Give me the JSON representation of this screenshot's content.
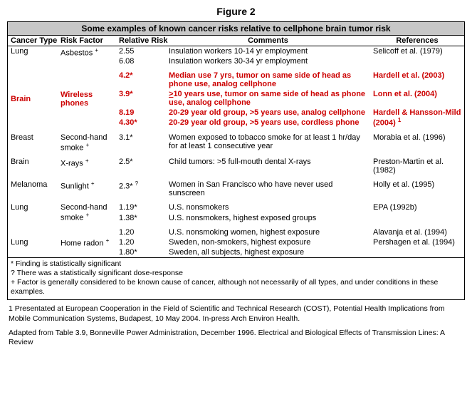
{
  "figure_label": "Figure 2",
  "caption": "Some examples of known cancer risks relative to cellphone brain tumor risk",
  "headers": {
    "cancer_type": "Cancer Type",
    "risk_factor": "Risk Factor",
    "relative_risk": "Relative Risk",
    "comments": "Comments",
    "references": "References"
  },
  "rows": {
    "lung_asbestos": {
      "ct": "Lung",
      "rf": "Asbestos",
      "rf_sup": "+",
      "rr1": "2.55",
      "rr2": "6.08",
      "cm1": "Insulation workers 10-14 yr employment",
      "cm2": "Insulation workers 30-34 yr employment",
      "ref": "Selicoff et al. (1979)"
    },
    "brain_wireless": {
      "ct": "Brain",
      "rf": "Wireless phones",
      "rr1": "4.2*",
      "rr2": "3.9*",
      "rr3": "8.19",
      "rr4": "4.30*",
      "cm1": "Median use 7 yrs, tumor on same side of head as phone use, analog cellphone",
      "cm2a": ">",
      "cm2b": "10 years use, tumor on same side of head as phone use, analog cellphone",
      "cm3": "20-29 year old group, >5 years use, analog cellphone",
      "cm4": "20-29 year old group, >5 years use, cordless phone",
      "ref1": "Hardell et al. (2003)",
      "ref2": "Lonn et al. (2004)",
      "ref3": "Hardell & Hansson-Mild (2004)",
      "ref3_sup": "1"
    },
    "breast_smoke": {
      "ct": "Breast",
      "rf": "Second-hand smoke",
      "rf_sup": "+",
      "rr": "3.1*",
      "cm": "Women exposed to tobacco smoke for at least 1 hr/day for at least 1 consecutive year",
      "ref": "Morabia et al. (1996)"
    },
    "brain_xray": {
      "ct": "Brain",
      "rf": "X-rays",
      "rf_sup": "+",
      "rr": "2.5*",
      "cm": "Child tumors: >5 full-mouth dental X-rays",
      "ref": "Preston-Martin et al. (1982)"
    },
    "melanoma": {
      "ct": "Melanoma",
      "rf": "Sunlight",
      "rf_sup": "+",
      "rr": "2.3*",
      "rr_sup": "?",
      "cm": "Women in San Francisco who have never used sunscreen",
      "ref": "Holly et al. (1995)"
    },
    "lung_smoke": {
      "ct": "Lung",
      "rf": "Second-hand smoke",
      "rf_sup": "+",
      "rr1": "1.19*",
      "rr2": "1.38*",
      "cm1": "U.S. nonsmokers",
      "cm2": "U.S. nonsmokers, highest exposed groups",
      "ref": "EPA (1992b)"
    },
    "lung_radon": {
      "ct": "Lung",
      "rf": "Home radon",
      "rf_sup": "+",
      "rr1": "1.20",
      "rr2": "1.20",
      "rr3": "1.80*",
      "cm1": "U.S. nonsmoking women, highest exposure",
      "cm2": "Sweden, non-smokers, highest exposure",
      "cm3": "Sweden, all subjects, highest exposure",
      "ref1": "Alavanja et al. (1994)",
      "ref2": "Pershagen et al. (1994)"
    }
  },
  "notes": {
    "n1": "* Finding is statistically significant",
    "n2": "? There was a statistically significant dose-response",
    "n3": "+ Factor is generally considered to be known cause of cancer, although not necessarily of all types, and under conditions in these examples."
  },
  "below": {
    "p1": "1 Presentated at European Cooperation in the Field of Scientific and Technical Research (COST), Potential Health Implications from Mobile Communication Systems, Budapest, 10 May 2004.  In-press Arch Environ Health.",
    "p2": "Adapted from Table 3.9, Bonneville Power Administration, December 1996.  Electrical and Biological Effects of Transmission Lines:  A Review"
  }
}
